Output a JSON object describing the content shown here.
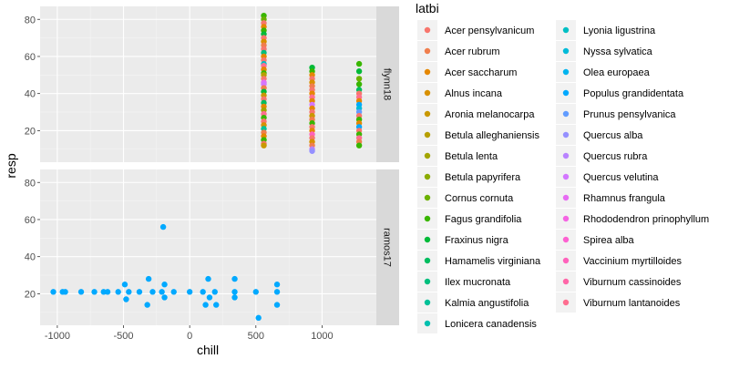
{
  "chart_data": {
    "type": "scatter",
    "xlabel": "chill",
    "ylabel": "resp",
    "xlim": [
      -1130,
      1410
    ],
    "ylim": [
      3,
      87
    ],
    "x_ticks": [
      -1000,
      -500,
      0,
      500,
      1000
    ],
    "x_tick_labels": [
      "-1000",
      "-500",
      "0",
      "500",
      "1000"
    ],
    "y_ticks": [
      20,
      40,
      60,
      80
    ],
    "y_tick_labels": [
      "20",
      "40",
      "60",
      "80"
    ],
    "grid": true,
    "legend_position": "right",
    "legend_title": "latbi",
    "legend_entries": [
      {
        "label": "Acer pensylvanicum",
        "color": "#F8766D"
      },
      {
        "label": "Acer rubrum",
        "color": "#F07E4D"
      },
      {
        "label": "Acer saccharum",
        "color": "#E58700"
      },
      {
        "label": "Alnus incana",
        "color": "#D89000"
      },
      {
        "label": "Aronia melanocarpa",
        "color": "#C99800"
      },
      {
        "label": "Betula alleghaniensis",
        "color": "#B79F00"
      },
      {
        "label": "Betula lenta",
        "color": "#A3A500"
      },
      {
        "label": "Betula papyrifera",
        "color": "#8BAB00"
      },
      {
        "label": "Cornus cornuta",
        "color": "#6BB100"
      },
      {
        "label": "Fagus grandifolia",
        "color": "#39B600"
      },
      {
        "label": "Fraxinus nigra",
        "color": "#00BA38"
      },
      {
        "label": "Hamamelis virginiana",
        "color": "#00BD5F"
      },
      {
        "label": "Ilex mucronata",
        "color": "#00BF7D"
      },
      {
        "label": "Kalmia angustifolia",
        "color": "#00C097"
      },
      {
        "label": "Lonicera canadensis",
        "color": "#00C0AF"
      },
      {
        "label": "Lyonia ligustrina",
        "color": "#00BFC4"
      },
      {
        "label": "Nyssa sylvatica",
        "color": "#00BBD9"
      },
      {
        "label": "Olea europaea",
        "color": "#00B4EF"
      },
      {
        "label": "Populus grandidentata",
        "color": "#00A9FF"
      },
      {
        "label": "Prunus pensylvanica",
        "color": "#619CFF"
      },
      {
        "label": "Quercus alba",
        "color": "#9590FF"
      },
      {
        "label": "Quercus rubra",
        "color": "#B983FF"
      },
      {
        "label": "Quercus velutina",
        "color": "#D376FF"
      },
      {
        "label": "Rhamnus frangula",
        "color": "#E76BF3"
      },
      {
        "label": "Rhododendron prinophyllum",
        "color": "#F564E3"
      },
      {
        "label": "Spirea alba",
        "color": "#FD61D1"
      },
      {
        "label": "Vaccinium myrtilloides",
        "color": "#FF62BC"
      },
      {
        "label": "Viburnum cassinoides",
        "color": "#FF66A8"
      },
      {
        "label": "Viburnum lantanoides",
        "color": "#FE6E90"
      }
    ],
    "panels": [
      {
        "strip": "flynn18",
        "points": [
          {
            "x": 560,
            "y": 82,
            "c": "#39B600"
          },
          {
            "x": 560,
            "y": 80,
            "c": "#6BB100"
          },
          {
            "x": 560,
            "y": 78,
            "c": "#F8766D"
          },
          {
            "x": 560,
            "y": 76,
            "c": "#E58700"
          },
          {
            "x": 560,
            "y": 74,
            "c": "#39B600"
          },
          {
            "x": 560,
            "y": 72,
            "c": "#00BA38"
          },
          {
            "x": 560,
            "y": 70,
            "c": "#F8766D"
          },
          {
            "x": 560,
            "y": 68,
            "c": "#D89000"
          },
          {
            "x": 560,
            "y": 66,
            "c": "#F07E4D"
          },
          {
            "x": 560,
            "y": 64,
            "c": "#F8766D"
          },
          {
            "x": 560,
            "y": 62,
            "c": "#00BF7D"
          },
          {
            "x": 560,
            "y": 60,
            "c": "#E58700"
          },
          {
            "x": 560,
            "y": 58,
            "c": "#F8766D"
          },
          {
            "x": 560,
            "y": 56,
            "c": "#00BFC4"
          },
          {
            "x": 560,
            "y": 55,
            "c": "#FE6E90"
          },
          {
            "x": 560,
            "y": 53,
            "c": "#E58700"
          },
          {
            "x": 560,
            "y": 51,
            "c": "#39B600"
          },
          {
            "x": 560,
            "y": 50,
            "c": "#B79F00"
          },
          {
            "x": 560,
            "y": 48,
            "c": "#F8766D"
          },
          {
            "x": 560,
            "y": 46,
            "c": "#E76BF3"
          },
          {
            "x": 560,
            "y": 45,
            "c": "#D376FF"
          },
          {
            "x": 560,
            "y": 43,
            "c": "#F07E4D"
          },
          {
            "x": 560,
            "y": 41,
            "c": "#00BA38"
          },
          {
            "x": 560,
            "y": 39,
            "c": "#C99800"
          },
          {
            "x": 560,
            "y": 37,
            "c": "#F8766D"
          },
          {
            "x": 560,
            "y": 35,
            "c": "#00BD5F"
          },
          {
            "x": 560,
            "y": 33,
            "c": "#E58700"
          },
          {
            "x": 560,
            "y": 31,
            "c": "#A3A500"
          },
          {
            "x": 560,
            "y": 29,
            "c": "#FE6E90"
          },
          {
            "x": 560,
            "y": 27,
            "c": "#39B600"
          },
          {
            "x": 560,
            "y": 25,
            "c": "#F8766D"
          },
          {
            "x": 560,
            "y": 23,
            "c": "#D89000"
          },
          {
            "x": 560,
            "y": 21,
            "c": "#00C097"
          },
          {
            "x": 560,
            "y": 19,
            "c": "#F07E4D"
          },
          {
            "x": 560,
            "y": 17,
            "c": "#E58700"
          },
          {
            "x": 560,
            "y": 15,
            "c": "#39B600"
          },
          {
            "x": 560,
            "y": 13,
            "c": "#F8766D"
          },
          {
            "x": 560,
            "y": 12,
            "c": "#C99800"
          },
          {
            "x": 925,
            "y": 54,
            "c": "#00BA38"
          },
          {
            "x": 925,
            "y": 52,
            "c": "#39B600"
          },
          {
            "x": 925,
            "y": 50,
            "c": "#E58700"
          },
          {
            "x": 925,
            "y": 48,
            "c": "#F8766D"
          },
          {
            "x": 925,
            "y": 46,
            "c": "#D89000"
          },
          {
            "x": 925,
            "y": 44,
            "c": "#F07E4D"
          },
          {
            "x": 925,
            "y": 42,
            "c": "#F8766D"
          },
          {
            "x": 925,
            "y": 40,
            "c": "#E58700"
          },
          {
            "x": 925,
            "y": 38,
            "c": "#FE6E90"
          },
          {
            "x": 925,
            "y": 36,
            "c": "#E58700"
          },
          {
            "x": 925,
            "y": 34,
            "c": "#D376FF"
          },
          {
            "x": 925,
            "y": 32,
            "c": "#E58700"
          },
          {
            "x": 925,
            "y": 30,
            "c": "#F8766D"
          },
          {
            "x": 925,
            "y": 28,
            "c": "#C99800"
          },
          {
            "x": 925,
            "y": 26,
            "c": "#F07E4D"
          },
          {
            "x": 925,
            "y": 24,
            "c": "#39B600"
          },
          {
            "x": 925,
            "y": 22,
            "c": "#F8766D"
          },
          {
            "x": 925,
            "y": 20,
            "c": "#E58700"
          },
          {
            "x": 925,
            "y": 18,
            "c": "#FF62BC"
          },
          {
            "x": 925,
            "y": 16,
            "c": "#F8766D"
          },
          {
            "x": 925,
            "y": 14,
            "c": "#D89000"
          },
          {
            "x": 925,
            "y": 12,
            "c": "#F07E4D"
          },
          {
            "x": 925,
            "y": 10,
            "c": "#B983FF"
          },
          {
            "x": 925,
            "y": 9,
            "c": "#9590FF"
          },
          {
            "x": 1280,
            "y": 56,
            "c": "#39B600"
          },
          {
            "x": 1280,
            "y": 52,
            "c": "#00BA38"
          },
          {
            "x": 1280,
            "y": 48,
            "c": "#6BB100"
          },
          {
            "x": 1280,
            "y": 45,
            "c": "#39B600"
          },
          {
            "x": 1280,
            "y": 42,
            "c": "#00BD5F"
          },
          {
            "x": 1280,
            "y": 40,
            "c": "#F8766D"
          },
          {
            "x": 1280,
            "y": 38,
            "c": "#FE6E90"
          },
          {
            "x": 1280,
            "y": 36,
            "c": "#E58700"
          },
          {
            "x": 1280,
            "y": 34,
            "c": "#00A9FF"
          },
          {
            "x": 1280,
            "y": 32,
            "c": "#00BBD9"
          },
          {
            "x": 1280,
            "y": 30,
            "c": "#619CFF"
          },
          {
            "x": 1280,
            "y": 28,
            "c": "#F8766D"
          },
          {
            "x": 1280,
            "y": 26,
            "c": "#39B600"
          },
          {
            "x": 1280,
            "y": 24,
            "c": "#E58700"
          },
          {
            "x": 1280,
            "y": 22,
            "c": "#00A9FF"
          },
          {
            "x": 1280,
            "y": 20,
            "c": "#F8766D"
          },
          {
            "x": 1280,
            "y": 18,
            "c": "#39B600"
          },
          {
            "x": 1280,
            "y": 16,
            "c": "#FE6E90"
          },
          {
            "x": 1280,
            "y": 14,
            "c": "#F07E4D"
          },
          {
            "x": 1280,
            "y": 12,
            "c": "#39B600"
          }
        ]
      },
      {
        "strip": "ramos17",
        "points": [
          {
            "x": -1030,
            "y": 21,
            "c": "#00A9FF"
          },
          {
            "x": -960,
            "y": 21,
            "c": "#00A9FF"
          },
          {
            "x": -940,
            "y": 21,
            "c": "#00A9FF"
          },
          {
            "x": -820,
            "y": 21,
            "c": "#00A9FF"
          },
          {
            "x": -720,
            "y": 21,
            "c": "#00A9FF"
          },
          {
            "x": -650,
            "y": 21,
            "c": "#00A9FF"
          },
          {
            "x": -620,
            "y": 21,
            "c": "#00A9FF"
          },
          {
            "x": -540,
            "y": 21,
            "c": "#00A9FF"
          },
          {
            "x": -490,
            "y": 25,
            "c": "#00A9FF"
          },
          {
            "x": -460,
            "y": 21,
            "c": "#00A9FF"
          },
          {
            "x": -480,
            "y": 17,
            "c": "#00A9FF"
          },
          {
            "x": -380,
            "y": 21,
            "c": "#00A9FF"
          },
          {
            "x": -310,
            "y": 28,
            "c": "#00A9FF"
          },
          {
            "x": -320,
            "y": 14,
            "c": "#00A9FF"
          },
          {
            "x": -280,
            "y": 21,
            "c": "#00A9FF"
          },
          {
            "x": -200,
            "y": 56,
            "c": "#00A9FF"
          },
          {
            "x": -190,
            "y": 25,
            "c": "#00A9FF"
          },
          {
            "x": -190,
            "y": 18,
            "c": "#00A9FF"
          },
          {
            "x": -210,
            "y": 21,
            "c": "#00A9FF"
          },
          {
            "x": -120,
            "y": 21,
            "c": "#00A9FF"
          },
          {
            "x": 0,
            "y": 21,
            "c": "#00A9FF"
          },
          {
            "x": 100,
            "y": 21,
            "c": "#00A9FF"
          },
          {
            "x": 120,
            "y": 14,
            "c": "#00A9FF"
          },
          {
            "x": 140,
            "y": 28,
            "c": "#00A9FF"
          },
          {
            "x": 150,
            "y": 18,
            "c": "#00A9FF"
          },
          {
            "x": 190,
            "y": 21,
            "c": "#00A9FF"
          },
          {
            "x": 200,
            "y": 14,
            "c": "#00A9FF"
          },
          {
            "x": 340,
            "y": 28,
            "c": "#00A9FF"
          },
          {
            "x": 340,
            "y": 21,
            "c": "#00A9FF"
          },
          {
            "x": 340,
            "y": 18,
            "c": "#00A9FF"
          },
          {
            "x": 500,
            "y": 21,
            "c": "#00A9FF"
          },
          {
            "x": 520,
            "y": 7,
            "c": "#00A9FF"
          },
          {
            "x": 660,
            "y": 25,
            "c": "#00A9FF"
          },
          {
            "x": 660,
            "y": 21,
            "c": "#00A9FF"
          },
          {
            "x": 660,
            "y": 14,
            "c": "#00A9FF"
          }
        ]
      }
    ]
  }
}
